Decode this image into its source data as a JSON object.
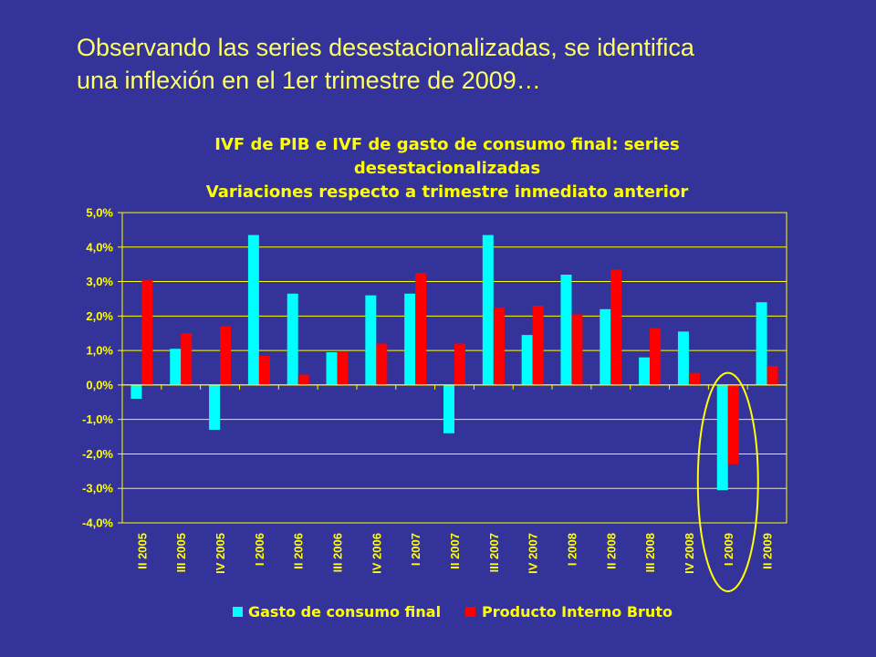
{
  "slide": {
    "title_line1": "Observando las series desestacionalizadas, se identifica",
    "title_line2": "una inflexión en el 1er trimestre de 2009…"
  },
  "colors": {
    "background": "#333399",
    "text": "#FFFF00",
    "series_consumo": "#00FFFF",
    "series_pib": "#FF0000",
    "highlight_ellipse": "#FFFF00"
  },
  "chart_data": {
    "type": "bar",
    "title_lines": [
      "IVF de PIB e IVF de gasto de consumo final: series",
      "desestacionalizadas",
      "Variaciones respecto a trimestre inmediato anterior"
    ],
    "xlabel": "",
    "ylabel": "",
    "ylim": [
      -4.0,
      5.0
    ],
    "yticks": [
      5.0,
      4.0,
      3.0,
      2.0,
      1.0,
      0.0,
      -1.0,
      -2.0,
      -3.0,
      -4.0
    ],
    "ytick_labels": [
      "5,0%",
      "4,0%",
      "3,0%",
      "2,0%",
      "1,0%",
      "0,0%",
      "-1,0%",
      "-2,0%",
      "-3,0%",
      "-4,0%"
    ],
    "grid": true,
    "legend_position": "bottom",
    "categories": [
      "II 2005",
      "III 2005",
      "IV 2005",
      "I 2006",
      "II 2006",
      "III 2006",
      "IV 2006",
      "I 2007",
      "II 2007",
      "III 2007",
      "IV 2007",
      "I 2008",
      "II 2008",
      "III 2008",
      "IV 2008",
      "I 2009",
      "II 2009"
    ],
    "series": [
      {
        "name": "Gasto de consumo final",
        "color": "#00FFFF",
        "values": [
          -0.4,
          1.05,
          -1.3,
          4.35,
          2.65,
          0.95,
          2.6,
          2.65,
          -1.4,
          4.35,
          1.45,
          3.2,
          2.2,
          0.8,
          1.55,
          -3.05,
          2.4
        ]
      },
      {
        "name": "Producto Interno Bruto",
        "color": "#FF0000",
        "values": [
          3.05,
          1.5,
          1.7,
          0.85,
          0.3,
          0.95,
          1.2,
          3.25,
          1.2,
          2.25,
          2.3,
          2.05,
          3.35,
          1.65,
          0.35,
          -2.3,
          0.55
        ]
      }
    ],
    "annotation": {
      "type": "ellipse",
      "category": "I 2009"
    }
  }
}
